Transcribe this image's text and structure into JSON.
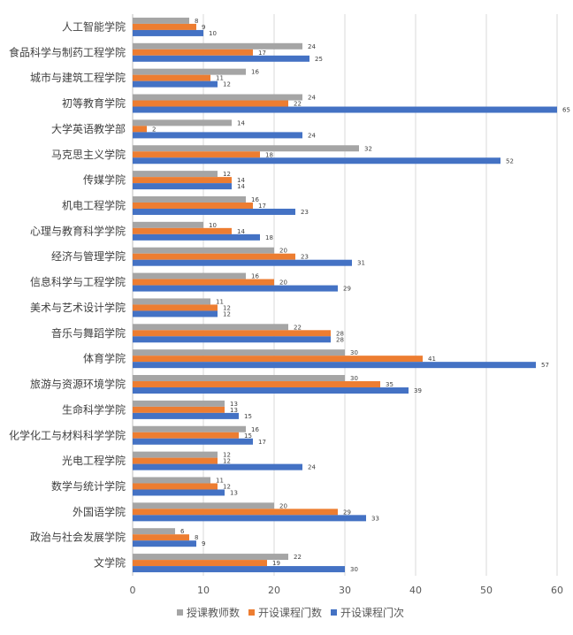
{
  "chart_data": {
    "type": "bar",
    "orientation": "horizontal",
    "categories": [
      "人工智能学院",
      "食品科学与制药工程学院",
      "城市与建筑工程学院",
      "初等教育学院",
      "大学英语教学部",
      "马克思主义学院",
      "传媒学院",
      "机电工程学院",
      "心理与教育科学学院",
      "经济与管理学院",
      "信息科学与工程学院",
      "美术与艺术设计学院",
      "音乐与舞蹈学院",
      "体育学院",
      "旅游与资源环境学院",
      "生命科学学院",
      "化学化工与材料科学学院",
      "光电工程学院",
      "数学与统计学院",
      "外国语学院",
      "政治与社会发展学院",
      "文学院"
    ],
    "series": [
      {
        "name": "授课教师数",
        "color": "#a5a5a5",
        "values": [
          8,
          24,
          16,
          24,
          14,
          32,
          12,
          16,
          10,
          20,
          16,
          11,
          22,
          30,
          30,
          13,
          16,
          12,
          11,
          20,
          6,
          22
        ]
      },
      {
        "name": "开设课程门数",
        "color": "#ed7d31",
        "values": [
          9,
          17,
          11,
          22,
          2,
          18,
          14,
          17,
          14,
          23,
          20,
          12,
          28,
          41,
          35,
          13,
          15,
          12,
          12,
          29,
          8,
          19
        ]
      },
      {
        "name": "开设课程门次",
        "color": "#4472c4",
        "values": [
          10,
          25,
          12,
          65,
          24,
          52,
          14,
          23,
          18,
          31,
          29,
          12,
          28,
          57,
          39,
          15,
          17,
          24,
          13,
          33,
          9,
          30
        ]
      }
    ],
    "xlim": [
      0,
      60
    ],
    "xticks": [
      0,
      10,
      20,
      30,
      40,
      50,
      60
    ],
    "grid": true,
    "legend": "bottom",
    "title": "",
    "xlabel": "",
    "ylabel": ""
  }
}
